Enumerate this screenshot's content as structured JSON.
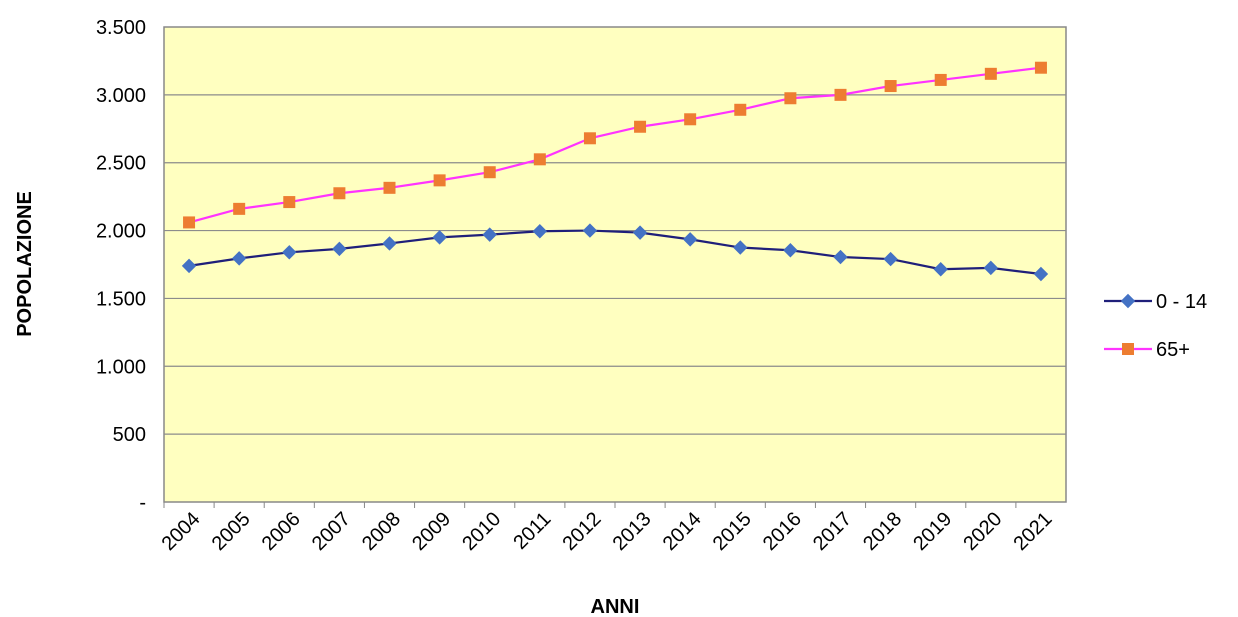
{
  "chart_data": {
    "type": "line",
    "x": [
      "2004",
      "2005",
      "2006",
      "2007",
      "2008",
      "2009",
      "2010",
      "2011",
      "2012",
      "2013",
      "2014",
      "2015",
      "2016",
      "2017",
      "2018",
      "2019",
      "2020",
      "2021"
    ],
    "series": [
      {
        "name": "0 - 14",
        "color": "#1f1f7a",
        "marker_color": "#4472c4",
        "marker": "diamond",
        "values": [
          1740,
          1795,
          1840,
          1865,
          1905,
          1950,
          1970,
          1995,
          2000,
          1985,
          1935,
          1875,
          1855,
          1805,
          1790,
          1715,
          1725,
          1680
        ]
      },
      {
        "name": "65+",
        "color": "#ff33ff",
        "marker_color": "#ed7d31",
        "marker": "square",
        "values": [
          2060,
          2160,
          2210,
          2275,
          2315,
          2370,
          2430,
          2525,
          2680,
          2765,
          2820,
          2890,
          2975,
          3000,
          3065,
          3110,
          3155,
          3200
        ]
      }
    ],
    "xlabel": "ANNI",
    "ylabel": "POPOLAZIONE",
    "ylim": [
      0,
      3500
    ],
    "yticks": [
      {
        "value": 0,
        "label": "-"
      },
      {
        "value": 500,
        "label": "500"
      },
      {
        "value": 1000,
        "label": "1.000"
      },
      {
        "value": 1500,
        "label": "1.500"
      },
      {
        "value": 2000,
        "label": "2.000"
      },
      {
        "value": 2500,
        "label": "2.500"
      },
      {
        "value": 3000,
        "label": "3.000"
      },
      {
        "value": 3500,
        "label": "3.500"
      }
    ],
    "grid": true,
    "legend_position": "right",
    "plot_background": "#ffffc0"
  }
}
